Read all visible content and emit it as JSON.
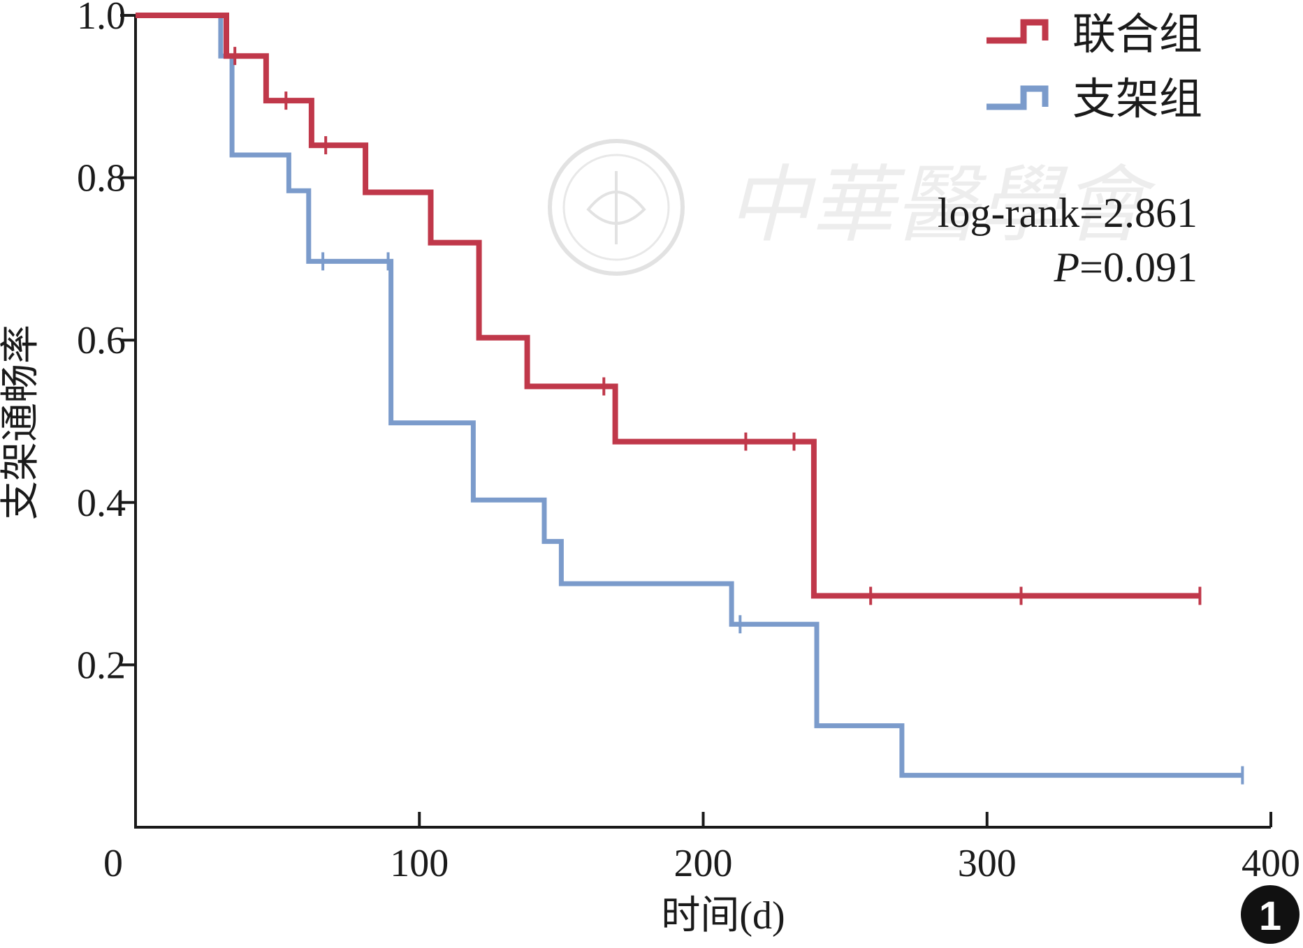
{
  "chart_data": {
    "type": "line",
    "step": true,
    "xlabel": "时间(d)",
    "ylabel": "支架通畅率",
    "xlim": [
      0,
      400
    ],
    "ylim": [
      0,
      1.0
    ],
    "x_ticks": [
      0,
      100,
      200,
      300,
      400
    ],
    "x_tick_labels": [
      "0",
      "100",
      "200",
      "300",
      "400"
    ],
    "y_ticks": [
      0.2,
      0.4,
      0.6,
      0.8,
      1.0
    ],
    "y_tick_labels": [
      "0.2",
      "0.4",
      "0.6",
      "0.8",
      "1.0"
    ],
    "grid": false,
    "legend_position": "top-right",
    "series": [
      {
        "name": "联合组",
        "color": "#c0384a",
        "points": [
          [
            0,
            1.0
          ],
          [
            32,
            1.0
          ],
          [
            32,
            0.95
          ],
          [
            46,
            0.95
          ],
          [
            46,
            0.895
          ],
          [
            62,
            0.895
          ],
          [
            62,
            0.84
          ],
          [
            81,
            0.84
          ],
          [
            81,
            0.782
          ],
          [
            104,
            0.782
          ],
          [
            104,
            0.72
          ],
          [
            121,
            0.72
          ],
          [
            121,
            0.603
          ],
          [
            138,
            0.603
          ],
          [
            138,
            0.543
          ],
          [
            169,
            0.543
          ],
          [
            169,
            0.475
          ],
          [
            239,
            0.475
          ],
          [
            239,
            0.285
          ],
          [
            375,
            0.285
          ]
        ],
        "censored": [
          [
            35,
            0.95
          ],
          [
            53,
            0.895
          ],
          [
            67,
            0.84
          ],
          [
            165,
            0.543
          ],
          [
            215,
            0.475
          ],
          [
            232,
            0.475
          ],
          [
            259,
            0.285
          ],
          [
            312,
            0.285
          ],
          [
            375,
            0.285
          ]
        ]
      },
      {
        "name": "支架组",
        "color": "#7b9bcb",
        "points": [
          [
            0,
            1.0
          ],
          [
            30,
            1.0
          ],
          [
            30,
            0.95
          ],
          [
            34,
            0.95
          ],
          [
            34,
            0.828
          ],
          [
            54,
            0.828
          ],
          [
            54,
            0.784
          ],
          [
            61,
            0.784
          ],
          [
            61,
            0.697
          ],
          [
            90,
            0.697
          ],
          [
            90,
            0.498
          ],
          [
            119,
            0.498
          ],
          [
            119,
            0.403
          ],
          [
            144,
            0.403
          ],
          [
            144,
            0.352
          ],
          [
            150,
            0.352
          ],
          [
            150,
            0.3
          ],
          [
            210,
            0.3
          ],
          [
            210,
            0.25
          ],
          [
            240,
            0.25
          ],
          [
            240,
            0.125
          ],
          [
            270,
            0.125
          ],
          [
            270,
            0.064
          ],
          [
            390,
            0.064
          ]
        ],
        "censored": [
          [
            66,
            0.697
          ],
          [
            89,
            0.697
          ],
          [
            213,
            0.25
          ],
          [
            390,
            0.064
          ]
        ]
      }
    ],
    "annotations": {
      "log_rank": "log-rank=2.861",
      "p_label": "P",
      "p_value": "=0.091"
    },
    "panel_label": "1"
  },
  "watermark": {
    "text": "中華醫學會"
  }
}
